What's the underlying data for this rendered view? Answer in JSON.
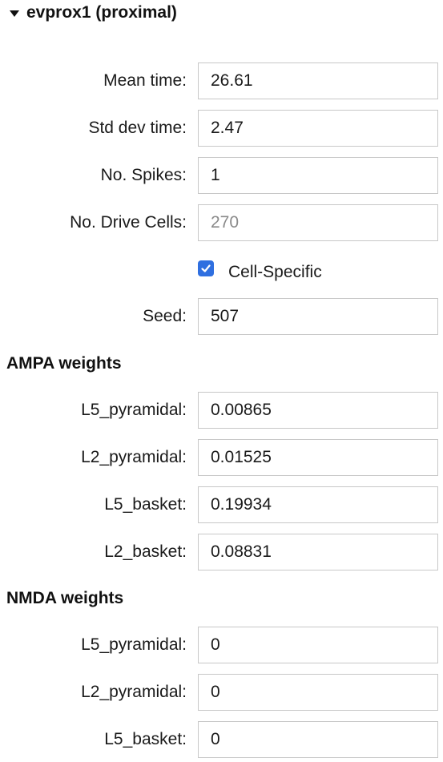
{
  "panel": {
    "title": "evprox1 (proximal)"
  },
  "fields": {
    "mean_time": {
      "label": "Mean time:",
      "value": "26.61"
    },
    "std_dev_time": {
      "label": "Std dev time:",
      "value": "2.47"
    },
    "no_spikes": {
      "label": "No. Spikes:",
      "value": "1"
    },
    "no_drive_cells": {
      "label": "No. Drive Cells:",
      "value": "270"
    },
    "cell_specific": {
      "label": "Cell-Specific",
      "checked": true
    },
    "seed": {
      "label": "Seed:",
      "value": "507"
    }
  },
  "ampa": {
    "title": "AMPA weights",
    "l5_pyramidal": {
      "label": "L5_pyramidal:",
      "value": "0.00865"
    },
    "l2_pyramidal": {
      "label": "L2_pyramidal:",
      "value": "0.01525"
    },
    "l5_basket": {
      "label": "L5_basket:",
      "value": "0.19934"
    },
    "l2_basket": {
      "label": "L2_basket:",
      "value": "0.08831"
    }
  },
  "nmda": {
    "title": "NMDA weights",
    "l5_pyramidal": {
      "label": "L5_pyramidal:",
      "value": "0"
    },
    "l2_pyramidal": {
      "label": "L2_pyramidal:",
      "value": "0"
    },
    "l5_basket": {
      "label": "L5_basket:",
      "value": "0"
    }
  },
  "colors": {
    "checkbox_accent": "#2f6fe0",
    "input_border": "#c8c8c8",
    "disabled_text": "#8a8a8a"
  }
}
